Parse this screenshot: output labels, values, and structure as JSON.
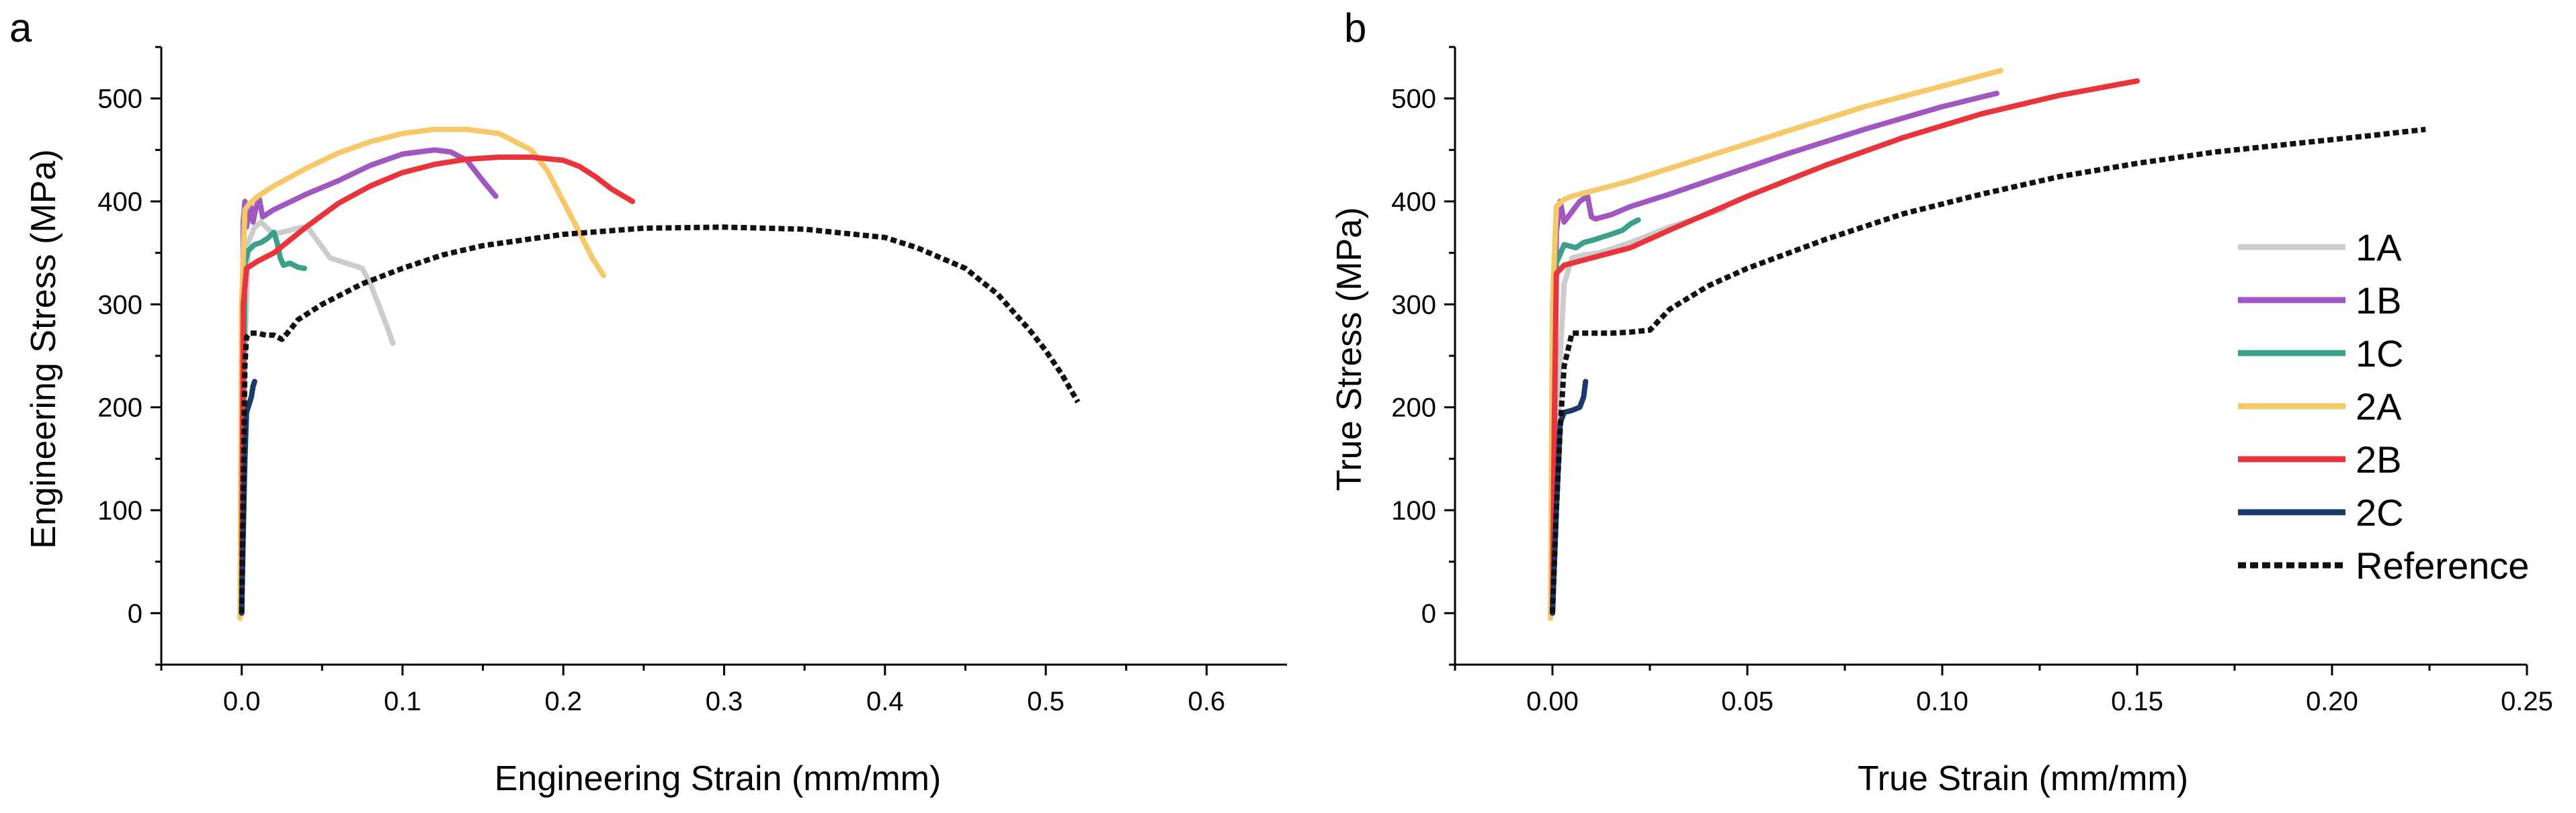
{
  "chart_data": [
    {
      "panel_label": "a",
      "type": "line",
      "xlabel": "Engineering Strain (mm/mm)",
      "ylabel": "Engineering Stress (MPa)",
      "xlim": [
        -0.05,
        0.65
      ],
      "ylim": [
        -50,
        550
      ],
      "xticks": [
        0.0,
        0.1,
        0.2,
        0.3,
        0.4,
        0.5,
        0.6
      ],
      "xtick_labels": [
        "0.0",
        "0.1",
        "0.2",
        "0.3",
        "0.4",
        "0.5",
        "0.6"
      ],
      "yticks": [
        0,
        100,
        200,
        300,
        400,
        500
      ],
      "ytick_labels": [
        "0",
        "100",
        "200",
        "300",
        "400",
        "500"
      ],
      "series": [
        {
          "name": "1A",
          "color": "#cccccc",
          "dash": "solid",
          "x": [
            0.0,
            0.002,
            0.004,
            0.008,
            0.012,
            0.02,
            0.03,
            0.038,
            0.042,
            0.048,
            0.055,
            0.065,
            0.075,
            0.08,
            0.085,
            0.09,
            0.094
          ],
          "y": [
            0,
            250,
            360,
            375,
            380,
            368,
            372,
            375,
            373,
            360,
            345,
            340,
            335,
            320,
            300,
            280,
            262
          ]
        },
        {
          "name": "1B",
          "color": "#a057c0",
          "dash": "solid",
          "x": [
            0.0,
            0.001,
            0.002,
            0.003,
            0.005,
            0.007,
            0.009,
            0.011,
            0.013,
            0.02,
            0.04,
            0.06,
            0.08,
            0.1,
            0.12,
            0.13,
            0.14,
            0.15,
            0.158
          ],
          "y": [
            0,
            380,
            400,
            375,
            398,
            380,
            395,
            402,
            385,
            392,
            407,
            420,
            435,
            446,
            450,
            448,
            440,
            420,
            405
          ]
        },
        {
          "name": "1C",
          "color": "#3aa08a",
          "dash": "solid",
          "x": [
            0.0,
            0.002,
            0.004,
            0.008,
            0.012,
            0.016,
            0.02,
            0.022,
            0.024,
            0.026,
            0.03,
            0.035,
            0.039
          ],
          "y": [
            0,
            340,
            352,
            358,
            360,
            364,
            370,
            360,
            345,
            338,
            340,
            336,
            335
          ]
        },
        {
          "name": "2A",
          "color": "#f5c86a",
          "dash": "solid",
          "x": [
            -0.001,
            0.0,
            0.002,
            0.005,
            0.01,
            0.02,
            0.04,
            0.06,
            0.08,
            0.1,
            0.12,
            0.14,
            0.16,
            0.18,
            0.19,
            0.2,
            0.21,
            0.218,
            0.225
          ],
          "y": [
            -5,
            300,
            392,
            398,
            405,
            415,
            432,
            447,
            458,
            466,
            470,
            470,
            466,
            450,
            430,
            400,
            370,
            345,
            328
          ]
        },
        {
          "name": "2B",
          "color": "#e8343a",
          "dash": "solid",
          "x": [
            0.0,
            0.001,
            0.003,
            0.006,
            0.01,
            0.02,
            0.04,
            0.06,
            0.08,
            0.1,
            0.12,
            0.14,
            0.16,
            0.18,
            0.2,
            0.21,
            0.22,
            0.23,
            0.243
          ],
          "y": [
            0,
            300,
            335,
            338,
            342,
            350,
            375,
            398,
            415,
            428,
            436,
            441,
            443,
            443,
            440,
            434,
            424,
            412,
            400
          ]
        },
        {
          "name": "2C",
          "color": "#1b3a6b",
          "dash": "solid",
          "x": [
            0.0,
            0.001,
            0.002,
            0.003,
            0.004,
            0.005,
            0.006,
            0.007,
            0.008
          ],
          "y": [
            0,
            80,
            150,
            195,
            200,
            205,
            210,
            220,
            225
          ]
        },
        {
          "name": "Reference",
          "color": "#111111",
          "dash": "dot",
          "x": [
            0.0,
            0.001,
            0.002,
            0.003,
            0.005,
            0.01,
            0.015,
            0.02,
            0.025,
            0.03,
            0.035,
            0.05,
            0.075,
            0.1,
            0.125,
            0.15,
            0.2,
            0.25,
            0.3,
            0.35,
            0.4,
            0.42,
            0.45,
            0.47,
            0.49,
            0.5,
            0.51,
            0.52
          ],
          "y": [
            0,
            120,
            240,
            268,
            272,
            272,
            270,
            270,
            266,
            275,
            285,
            300,
            320,
            335,
            348,
            357,
            368,
            374,
            375,
            373,
            365,
            355,
            335,
            310,
            275,
            255,
            232,
            205
          ]
        }
      ]
    },
    {
      "panel_label": "b",
      "type": "line",
      "xlabel": "True Strain (mm/mm)",
      "ylabel": "True Stress (MPa)",
      "xlim": [
        -0.025,
        0.25
      ],
      "ylim": [
        -50,
        550
      ],
      "xticks": [
        0.0,
        0.05,
        0.1,
        0.15,
        0.2,
        0.25
      ],
      "xtick_labels": [
        "0.00",
        "0.05",
        "0.10",
        "0.15",
        "0.20",
        "0.25"
      ],
      "yticks": [
        0,
        100,
        200,
        300,
        400,
        500
      ],
      "ytick_labels": [
        "0",
        "100",
        "200",
        "300",
        "400",
        "500"
      ],
      "series": [
        {
          "name": "1A",
          "color": "#cccccc",
          "dash": "solid",
          "x": [
            0.0,
            0.002,
            0.003,
            0.005,
            0.008,
            0.012,
            0.02,
            0.03,
            0.038,
            0.044
          ],
          "y": [
            0,
            250,
            320,
            345,
            348,
            350,
            360,
            375,
            385,
            393
          ]
        },
        {
          "name": "1B",
          "color": "#a057c0",
          "dash": "solid",
          "x": [
            0.0,
            0.001,
            0.002,
            0.003,
            0.004,
            0.005,
            0.007,
            0.009,
            0.01,
            0.011,
            0.015,
            0.02,
            0.03,
            0.04,
            0.06,
            0.08,
            0.1,
            0.114
          ],
          "y": [
            0,
            370,
            400,
            380,
            385,
            390,
            400,
            405,
            385,
            383,
            387,
            395,
            407,
            420,
            446,
            470,
            492,
            505
          ]
        },
        {
          "name": "1C",
          "color": "#3aa08a",
          "dash": "solid",
          "x": [
            0.0,
            0.001,
            0.003,
            0.006,
            0.008,
            0.01,
            0.015,
            0.018,
            0.02,
            0.022
          ],
          "y": [
            0,
            340,
            358,
            355,
            360,
            362,
            368,
            372,
            378,
            382
          ]
        },
        {
          "name": "2A",
          "color": "#f5c86a",
          "dash": "solid",
          "x": [
            -0.0005,
            0.0,
            0.001,
            0.003,
            0.005,
            0.01,
            0.02,
            0.03,
            0.04,
            0.05,
            0.06,
            0.07,
            0.08,
            0.09,
            0.1,
            0.11,
            0.115
          ],
          "y": [
            -5,
            300,
            395,
            402,
            405,
            410,
            420,
            432,
            444,
            456,
            468,
            480,
            492,
            502,
            512,
            522,
            527
          ]
        },
        {
          "name": "2B",
          "color": "#e8343a",
          "dash": "solid",
          "x": [
            0.0,
            0.0005,
            0.001,
            0.003,
            0.005,
            0.01,
            0.02,
            0.03,
            0.05,
            0.07,
            0.09,
            0.11,
            0.13,
            0.15
          ],
          "y": [
            0,
            190,
            330,
            338,
            340,
            345,
            355,
            372,
            405,
            435,
            462,
            485,
            503,
            517
          ]
        },
        {
          "name": "2C",
          "color": "#1b3a6b",
          "dash": "solid",
          "x": [
            0.0,
            0.001,
            0.002,
            0.003,
            0.005,
            0.007,
            0.008,
            0.0085
          ],
          "y": [
            0,
            100,
            185,
            195,
            197,
            200,
            210,
            225
          ]
        },
        {
          "name": "Reference",
          "color": "#111111",
          "dash": "dot",
          "x": [
            0.0,
            0.001,
            0.002,
            0.003,
            0.005,
            0.01,
            0.015,
            0.02,
            0.025,
            0.03,
            0.04,
            0.05,
            0.07,
            0.09,
            0.11,
            0.13,
            0.15,
            0.17,
            0.19,
            0.21,
            0.224
          ],
          "y": [
            0,
            100,
            180,
            240,
            272,
            272,
            272,
            273,
            275,
            295,
            318,
            335,
            363,
            388,
            407,
            424,
            437,
            448,
            456,
            464,
            470
          ]
        }
      ]
    }
  ],
  "legend": {
    "placement": "right of panel b",
    "entries": [
      "1A",
      "1B",
      "1C",
      "2A",
      "2B",
      "2C",
      "Reference"
    ]
  }
}
